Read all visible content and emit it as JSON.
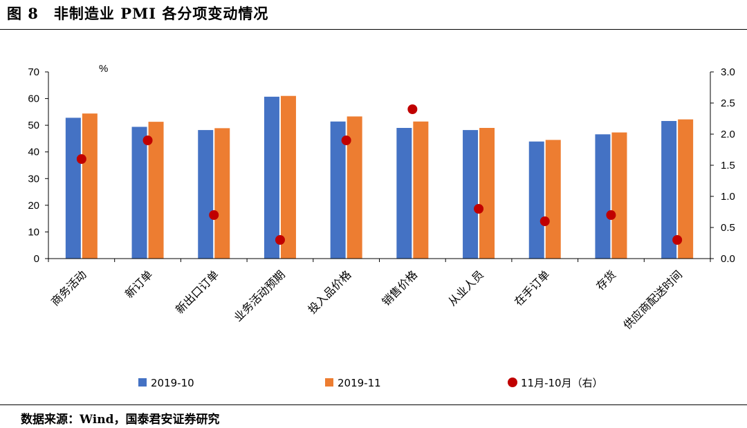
{
  "header": {
    "title": "图 8　非制造业 PMI 各分项变动情况"
  },
  "footer": {
    "source": "数据来源：Wind，国泰君安证券研究"
  },
  "chart_data": {
    "type": "bar",
    "title": "",
    "unit_label": "%",
    "categories": [
      "商务活动",
      "新订单",
      "新出口订单",
      "业务活动预期",
      "投入品价格",
      "销售价格",
      "从业人员",
      "在手订单",
      "存货",
      "供应商配送时间"
    ],
    "series": [
      {
        "name": "2019-10",
        "type": "bar",
        "axis": "left",
        "color": "#4472C4",
        "values": [
          52.8,
          49.4,
          48.2,
          60.7,
          51.4,
          49.0,
          48.2,
          43.9,
          46.6,
          51.6
        ]
      },
      {
        "name": "2019-11",
        "type": "bar",
        "axis": "left",
        "color": "#ED7D31",
        "values": [
          54.4,
          51.3,
          48.9,
          61.0,
          53.3,
          51.4,
          49.0,
          44.5,
          47.3,
          52.2
        ]
      },
      {
        "name": "11月-10月（右）",
        "type": "scatter",
        "axis": "right",
        "color": "#C00000",
        "values": [
          1.6,
          1.9,
          0.7,
          0.3,
          1.9,
          2.4,
          0.8,
          0.6,
          0.7,
          0.3
        ]
      }
    ],
    "y_left": {
      "min": 0,
      "max": 70,
      "ticks": [
        "0",
        "10",
        "20",
        "30",
        "40",
        "50",
        "60",
        "70"
      ]
    },
    "y_right": {
      "min": 0,
      "max": 3.0,
      "ticks": [
        "0.0",
        "0.5",
        "1.0",
        "1.5",
        "2.0",
        "2.5",
        "3.0"
      ]
    },
    "grid": false,
    "legend_position": "bottom"
  }
}
